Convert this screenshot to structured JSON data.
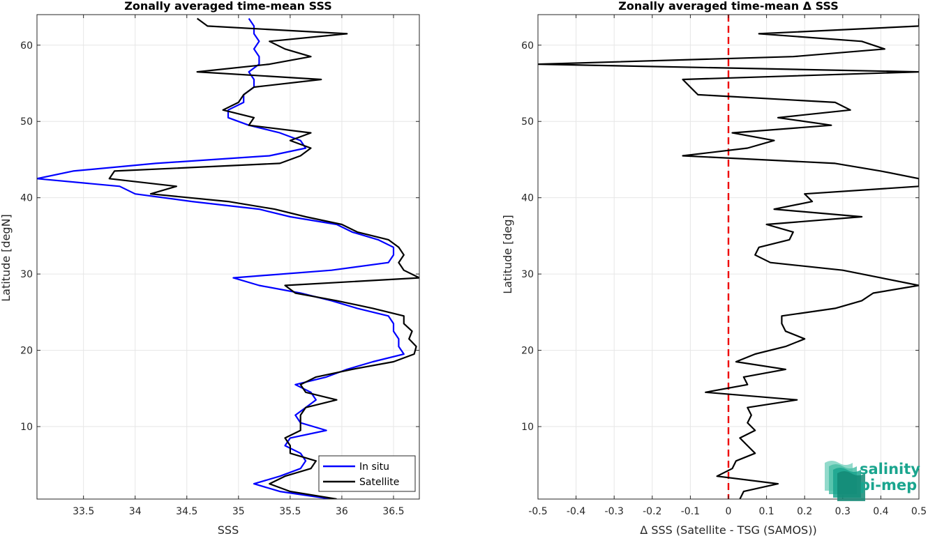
{
  "chart_data": [
    {
      "type": "line",
      "title": "Zonally averaged time-mean SSS",
      "xlabel": "SSS",
      "ylabel": "Latitude [degN]",
      "xlim": [
        33.05,
        36.75
      ],
      "ylim": [
        0.5,
        64
      ],
      "xticks": [
        33.5,
        34,
        34.5,
        35,
        35.5,
        36,
        36.5
      ],
      "xtick_labels": [
        "33.5",
        "34",
        "34.5",
        "35",
        "35.5",
        "36",
        "36.5"
      ],
      "yticks": [
        10,
        20,
        30,
        40,
        50,
        60
      ],
      "ytick_labels": [
        "10",
        "20",
        "30",
        "40",
        "50",
        "60"
      ],
      "grid": true,
      "legend": "bottom-right",
      "series": [
        {
          "name": "In situ",
          "color": "#0000ff",
          "lat": [
            0.5,
            1.5,
            2.5,
            3.5,
            4.5,
            5.5,
            6.5,
            7.5,
            8.5,
            9.5,
            10.5,
            11.5,
            12.5,
            13.5,
            14.5,
            15.5,
            16.5,
            17.5,
            18.5,
            19.5,
            20.5,
            21.5,
            22.5,
            23.5,
            24.5,
            25.5,
            26.5,
            27.5,
            28.5,
            29.5,
            30.5,
            31.5,
            32.5,
            33.5,
            34.5,
            35.5,
            36.5,
            37.5,
            38.5,
            39.5,
            40.5,
            41.5,
            42.5,
            43.5,
            44.5,
            45.5,
            46.5,
            47.5,
            48.5,
            49.5,
            50.5,
            51.5,
            52.5,
            53.5,
            54.5,
            55.5,
            56.5,
            57.5,
            58.5,
            59.5,
            60.5,
            61.5,
            62.5,
            63.5
          ],
          "sss": [
            35.9,
            35.4,
            35.15,
            35.4,
            35.6,
            35.65,
            35.6,
            35.45,
            35.5,
            35.85,
            35.6,
            35.55,
            35.65,
            35.75,
            35.7,
            35.55,
            35.85,
            36.05,
            36.3,
            36.6,
            36.55,
            36.55,
            36.5,
            36.5,
            36.45,
            36.15,
            35.9,
            35.6,
            35.2,
            34.95,
            35.9,
            36.45,
            36.5,
            36.5,
            36.35,
            36.1,
            35.95,
            35.5,
            35.2,
            34.55,
            34.0,
            33.85,
            33.05,
            33.4,
            34.2,
            35.3,
            35.65,
            35.6,
            35.4,
            35.1,
            34.9,
            34.9,
            35.05,
            35.05,
            35.15,
            35.15,
            35.1,
            35.2,
            35.2,
            35.15,
            35.2,
            35.15,
            35.15,
            35.1
          ]
        },
        {
          "name": "Satellite",
          "color": "#000000",
          "lat": [
            0.5,
            1.5,
            2.5,
            3.5,
            4.5,
            5.5,
            6.5,
            7.5,
            8.5,
            9.5,
            10.5,
            11.5,
            12.5,
            13.5,
            14.5,
            15.5,
            16.5,
            17.5,
            18.5,
            19.5,
            20.5,
            21.5,
            22.5,
            23.5,
            24.5,
            25.5,
            26.5,
            27.5,
            28.5,
            29.5,
            30.5,
            31.5,
            32.5,
            33.5,
            34.5,
            35.5,
            36.5,
            37.5,
            38.5,
            39.5,
            40.5,
            41.5,
            42.5,
            43.5,
            44.5,
            45.5,
            46.5,
            47.5,
            48.5,
            49.5,
            50.5,
            51.5,
            52.5,
            53.5,
            54.5,
            55.5,
            56.5,
            57.5,
            58.5,
            59.5,
            60.5,
            61.5,
            62.5,
            63.5
          ],
          "sss": [
            35.95,
            35.5,
            35.3,
            35.45,
            35.7,
            35.75,
            35.5,
            35.5,
            35.45,
            35.6,
            35.6,
            35.6,
            35.65,
            35.95,
            35.65,
            35.6,
            35.75,
            36.1,
            36.5,
            36.7,
            36.72,
            36.65,
            36.68,
            36.6,
            36.6,
            36.3,
            35.95,
            35.55,
            35.45,
            36.75,
            36.6,
            36.55,
            36.6,
            36.55,
            36.45,
            36.15,
            36.0,
            35.65,
            35.35,
            34.9,
            34.15,
            34.4,
            33.75,
            33.8,
            35.4,
            35.6,
            35.7,
            35.5,
            35.7,
            35.1,
            35.15,
            34.85,
            35.0,
            35.05,
            35.15,
            35.8,
            34.6,
            35.3,
            35.7,
            35.45,
            35.3,
            36.05,
            34.7,
            34.6
          ]
        }
      ]
    },
    {
      "type": "line",
      "title": "Zonally averaged time-mean Δ SSS",
      "xlabel": "Δ SSS (Satellite - TSG (SAMOS))",
      "ylabel": "Latitude [deg]",
      "xlim": [
        -0.5,
        0.5
      ],
      "ylim": [
        0.5,
        64
      ],
      "xticks": [
        -0.5,
        -0.4,
        -0.3,
        -0.2,
        -0.1,
        0,
        0.1,
        0.2,
        0.3,
        0.4,
        0.5
      ],
      "xtick_labels": [
        "-0.5",
        "-0.4",
        "-0.3",
        "-0.2",
        "-0.1",
        "0",
        "0.1",
        "0.2",
        "0.3",
        "0.4",
        "0.5"
      ],
      "yticks": [
        10,
        20,
        30,
        40,
        50,
        60
      ],
      "ytick_labels": [
        "10",
        "20",
        "30",
        "40",
        "50",
        "60"
      ],
      "grid": true,
      "reference_line": {
        "x": 0,
        "color": "#ee0000",
        "style": "dashed"
      },
      "series": [
        {
          "color": "#000000",
          "lat": [
            0.5,
            1.5,
            2.5,
            3.5,
            4.5,
            5.5,
            6.5,
            7.5,
            8.5,
            9.5,
            10.5,
            11.5,
            12.5,
            13.5,
            14.5,
            15.5,
            16.5,
            17.5,
            18.5,
            19.5,
            20.5,
            21.5,
            22.5,
            23.5,
            24.5,
            25.5,
            26.5,
            27.5,
            28.5,
            29.5,
            30.5,
            31.5,
            32.5,
            33.5,
            34.5,
            35.5,
            36.5,
            37.5,
            38.5,
            39.5,
            40.5,
            41.5,
            42.5,
            43.5,
            44.5,
            45.5,
            46.5,
            47.5,
            48.5,
            49.5,
            50.5,
            51.5,
            52.5,
            53.5,
            54.5,
            55.5,
            56.5,
            57.5,
            58.5,
            59.5,
            60.5,
            61.5,
            62.5,
            63.5
          ],
          "delta": [
            0.03,
            0.04,
            0.13,
            -0.03,
            0.01,
            0.02,
            0.07,
            0.05,
            0.03,
            0.07,
            0.05,
            0.06,
            0.05,
            0.18,
            -0.06,
            0.05,
            0.04,
            0.15,
            0.02,
            0.07,
            0.15,
            0.2,
            0.15,
            0.14,
            0.14,
            0.28,
            0.35,
            0.38,
            0.5,
            0.4,
            0.3,
            0.11,
            0.07,
            0.08,
            0.16,
            0.17,
            0.1,
            0.35,
            0.12,
            0.22,
            0.2,
            0.5,
            0.5,
            0.4,
            0.28,
            -0.12,
            0.05,
            0.12,
            0.01,
            0.27,
            0.13,
            0.32,
            0.28,
            -0.08,
            -0.1,
            -0.12,
            0.5,
            -0.5,
            0.17,
            0.41,
            0.35,
            0.08,
            0.5,
            0.5
          ]
        }
      ]
    }
  ],
  "logo": {
    "line1": "salinity",
    "line2": "pi-mep",
    "color": "#1aa58e"
  }
}
